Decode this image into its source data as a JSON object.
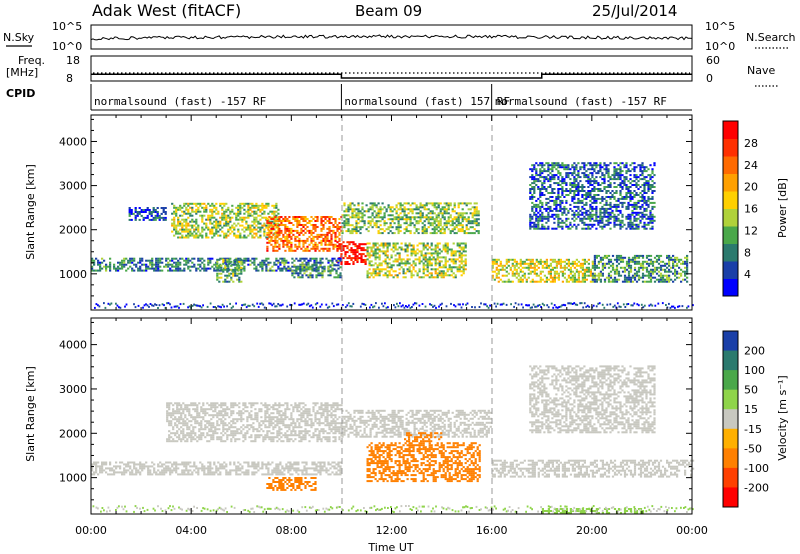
{
  "header": {
    "station": "Adak West (fitACF)",
    "beam": "Beam 09",
    "date": "25/Jul/2014"
  },
  "strips": {
    "nsky_label": "N.Sky",
    "nsky_ticks": [
      "10^5",
      "10^0"
    ],
    "nsearch_label": "N.Search",
    "nsearch_ticks": [
      "10^5",
      "10^0"
    ],
    "freq_label_line1": "Freq.",
    "freq_label_line2": "[MHz]",
    "freq_ticks": [
      "18",
      "8"
    ],
    "nave_label": "Nave",
    "nave_ticks": [
      "60",
      "0"
    ],
    "cpid_label": "CPID"
  },
  "cpid_segments": [
    {
      "label": "normalsound (fast) -157 RF",
      "start_hour": 0,
      "end_hour": 10
    },
    {
      "label": "normalsound (fast) 157 RF",
      "start_hour": 10,
      "end_hour": 16
    },
    {
      "label": "normalsound (fast) -157 RF",
      "start_hour": 16,
      "end_hour": 24
    }
  ],
  "frequency_steps": [
    {
      "start_hour": 0,
      "end_hour": 10,
      "freq_mhz": 10.7
    },
    {
      "start_hour": 10,
      "end_hour": 18,
      "freq_mhz": 9.2
    },
    {
      "start_hour": 18,
      "end_hour": 24,
      "freq_mhz": 10.7
    }
  ],
  "chart_data": [
    {
      "type": "heatmap",
      "name": "power",
      "ylabel": "Slant Range [km]",
      "xlabel": "Time UT",
      "xlim": [
        0,
        24
      ],
      "ylim": [
        180,
        4600
      ],
      "x_ticks": [
        "00:00",
        "04:00",
        "08:00",
        "12:00",
        "16:00",
        "20:00",
        "00:00"
      ],
      "y_ticks": [
        "1000",
        "2000",
        "3000",
        "4000"
      ],
      "colorbar": {
        "label": "Power [dB]",
        "ticks": [
          "4",
          "8",
          "12",
          "16",
          "20",
          "24",
          "28"
        ],
        "colors": [
          "#0000ff",
          "#1a3fa8",
          "#2b7a6e",
          "#4aa84a",
          "#b0d23a",
          "#ffd000",
          "#ffa000",
          "#ff6a00",
          "#ff3000",
          "#ff0000"
        ]
      },
      "regions": [
        {
          "t0": 3.2,
          "t1": 7.5,
          "r0": 1800,
          "r1": 2600,
          "level": 0.45
        },
        {
          "t0": 7.0,
          "t1": 10.0,
          "r0": 1500,
          "r1": 2300,
          "level": 0.75
        },
        {
          "t0": 9.8,
          "t1": 11.0,
          "r0": 1200,
          "r1": 1700,
          "level": 0.95
        },
        {
          "t0": 10.0,
          "t1": 15.5,
          "r0": 1900,
          "r1": 2600,
          "level": 0.4
        },
        {
          "t0": 11.0,
          "t1": 15.0,
          "r0": 900,
          "r1": 1700,
          "level": 0.45
        },
        {
          "t0": 0.0,
          "t1": 10.0,
          "r0": 1050,
          "r1": 1350,
          "level": 0.25
        },
        {
          "t0": 5.0,
          "t1": 6.0,
          "r0": 800,
          "r1": 1300,
          "level": 0.35
        },
        {
          "t0": 8.0,
          "t1": 10.0,
          "r0": 900,
          "r1": 1200,
          "level": 0.3
        },
        {
          "t0": 16.0,
          "t1": 20.0,
          "r0": 800,
          "r1": 1300,
          "level": 0.5
        },
        {
          "t0": 20.0,
          "t1": 23.8,
          "r0": 800,
          "r1": 1400,
          "level": 0.3
        },
        {
          "t0": 17.5,
          "t1": 22.5,
          "r0": 2000,
          "r1": 3500,
          "level": 0.2
        },
        {
          "t0": 1.5,
          "t1": 3.0,
          "r0": 2200,
          "r1": 2500,
          "level": 0.15
        }
      ]
    },
    {
      "type": "heatmap",
      "name": "velocity",
      "ylabel": "Slant Range [km]",
      "xlabel": "Time UT",
      "xlim": [
        0,
        24
      ],
      "ylim": [
        180,
        4600
      ],
      "x_ticks": [
        "00:00",
        "04:00",
        "08:00",
        "12:00",
        "16:00",
        "20:00",
        "00:00"
      ],
      "y_ticks": [
        "1000",
        "2000",
        "3000",
        "4000"
      ],
      "colorbar": {
        "label": "Velocity [m s⁻¹]",
        "ticks": [
          "200",
          "100",
          "50",
          "15",
          "-15",
          "-50",
          "-100",
          "-200"
        ],
        "colors": [
          "#1a3fa8",
          "#2b7a6e",
          "#4aa84a",
          "#8fd44a",
          "#c8c8c0",
          "#ffb000",
          "#ff8000",
          "#ff4000",
          "#ff0000"
        ]
      },
      "regions": [
        {
          "t0": 3.0,
          "t1": 10.0,
          "r0": 1800,
          "r1": 2700,
          "value": 0
        },
        {
          "t0": 10.0,
          "t1": 16.0,
          "r0": 1900,
          "r1": 2500,
          "value": 0
        },
        {
          "t0": 0.0,
          "t1": 10.0,
          "r0": 1050,
          "r1": 1350,
          "value": 0
        },
        {
          "t0": 16.0,
          "t1": 24.0,
          "r0": 1000,
          "r1": 1400,
          "value": 0
        },
        {
          "t0": 7.0,
          "t1": 9.0,
          "r0": 700,
          "r1": 1000,
          "value": -70
        },
        {
          "t0": 11.0,
          "t1": 15.5,
          "r0": 900,
          "r1": 1800,
          "value": -70
        },
        {
          "t0": 12.5,
          "t1": 14.0,
          "r0": 1800,
          "r1": 2000,
          "value": -70
        },
        {
          "t0": 17.5,
          "t1": 22.5,
          "r0": 2000,
          "r1": 3500,
          "value": 0
        },
        {
          "t0": 18.0,
          "t1": 22.0,
          "r0": 180,
          "r1": 280,
          "value": 30
        }
      ]
    }
  ]
}
